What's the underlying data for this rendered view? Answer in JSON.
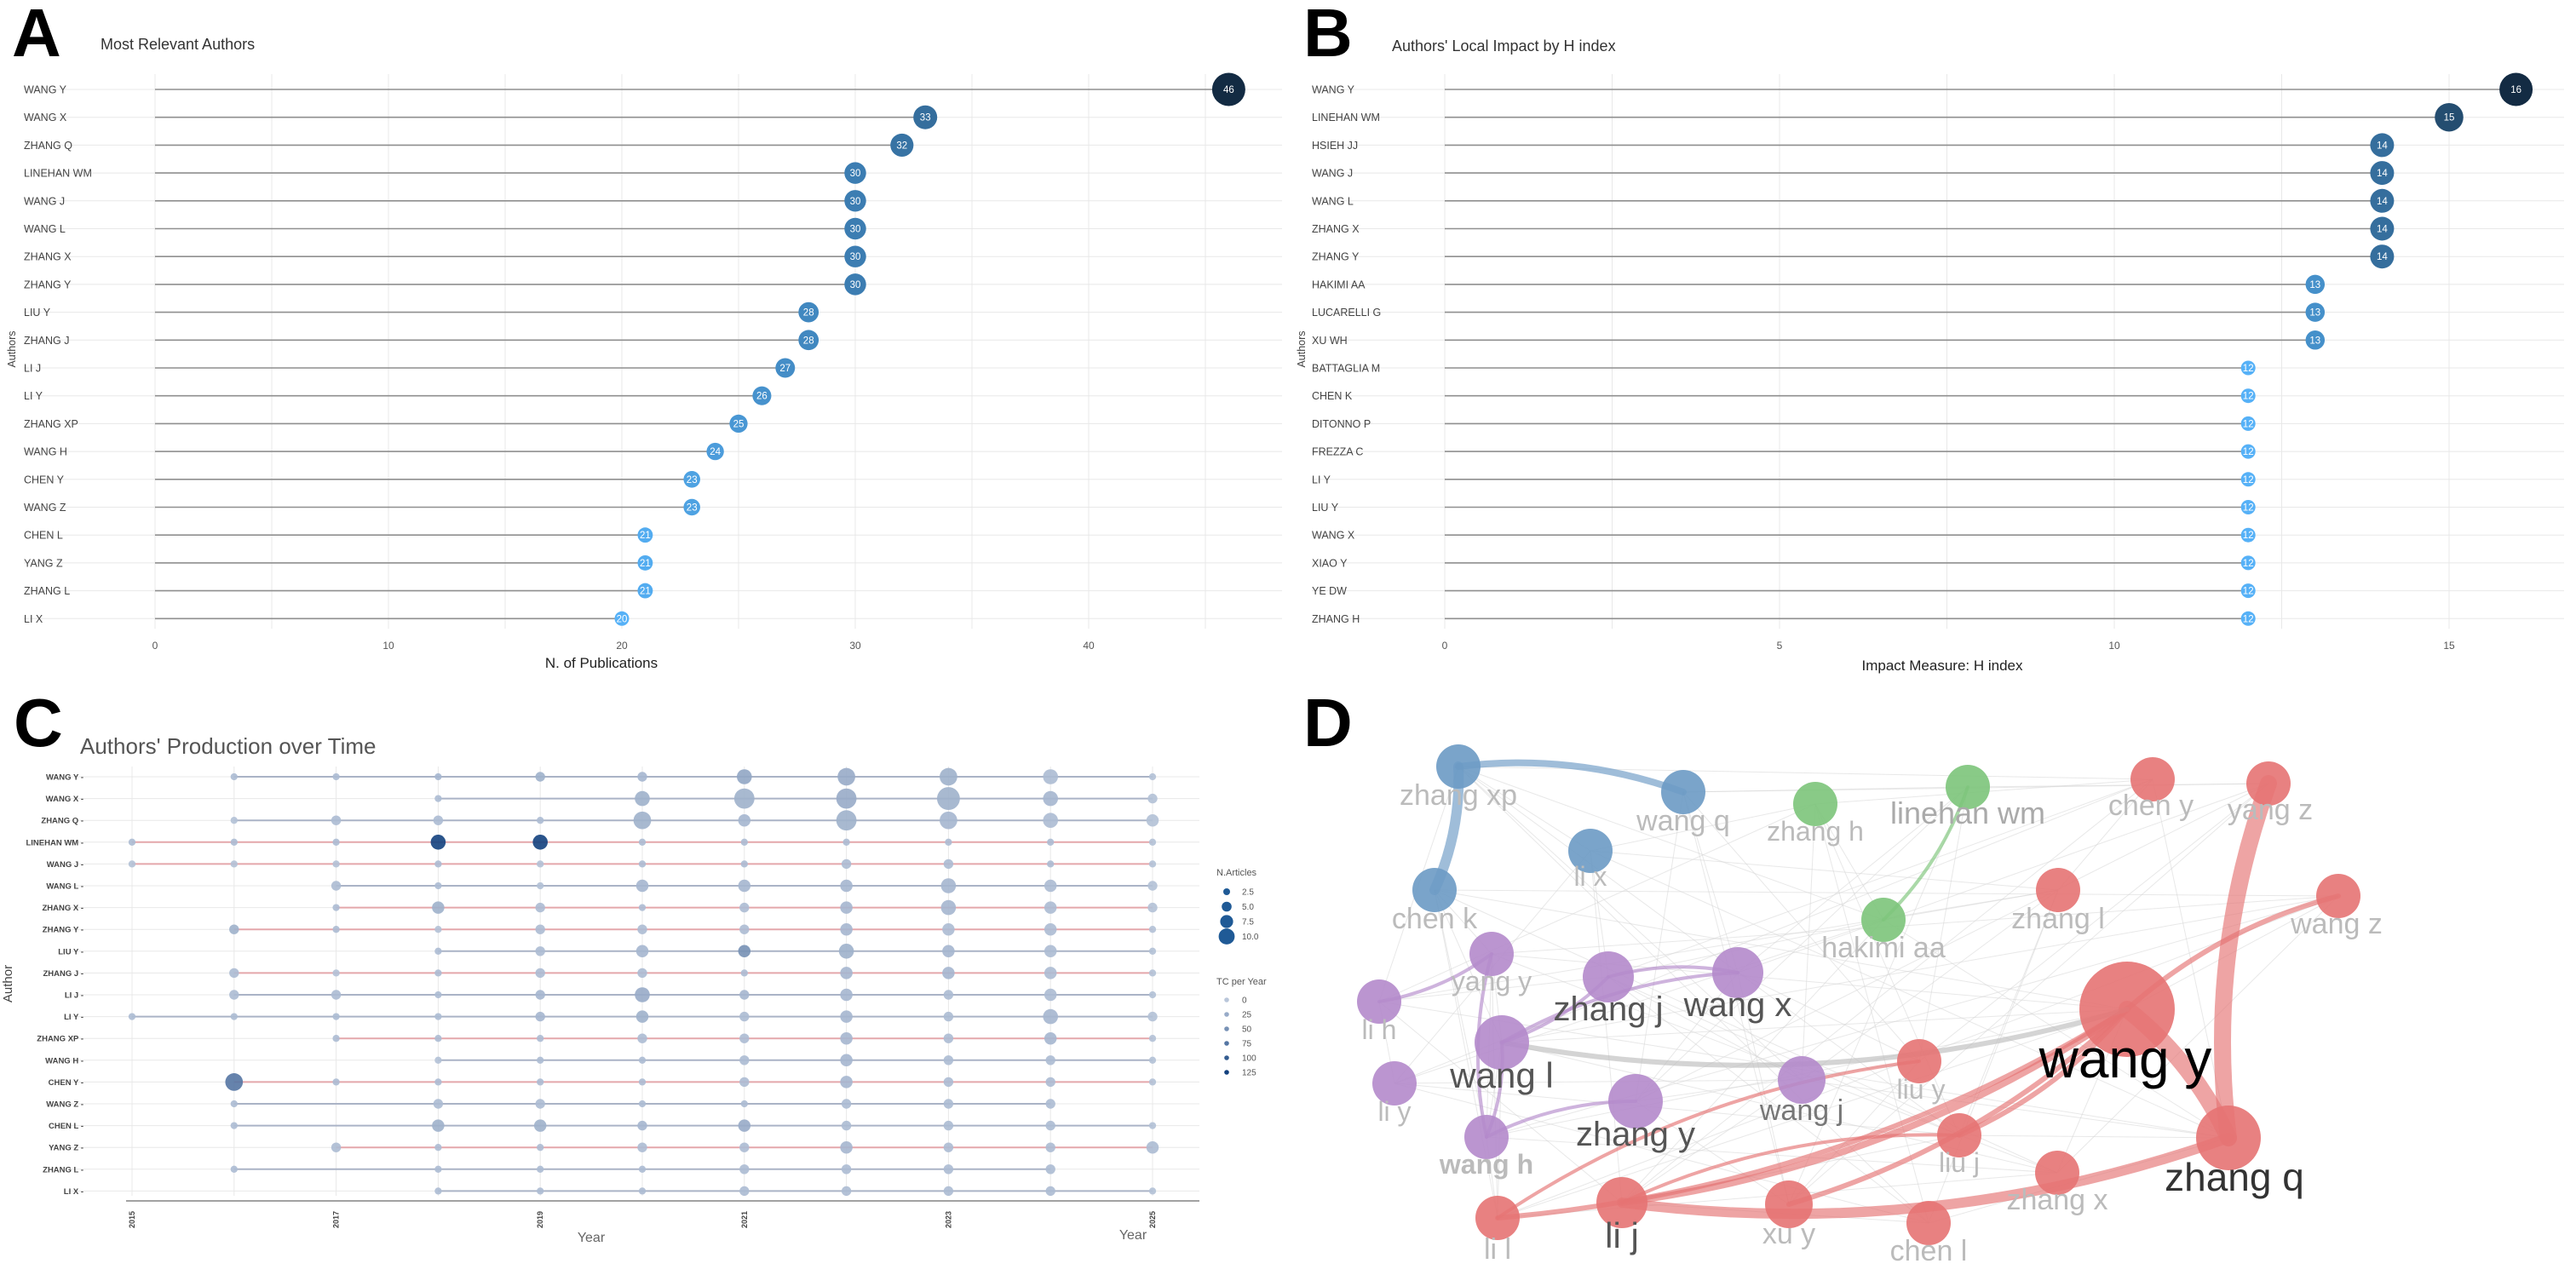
{
  "figure_labels": {
    "a": "A",
    "b": "B",
    "c": "C",
    "d": "D"
  },
  "chart_data": [
    {
      "panel": "A",
      "type": "lollipop",
      "title": "Most Relevant Authors",
      "xlabel": "N. of Publications",
      "ylabel": "Authors",
      "xlim": [
        0,
        46
      ],
      "xticks": [
        0,
        10,
        20,
        30,
        40
      ],
      "categories": [
        "WANG Y",
        "WANG X",
        "ZHANG Q",
        "LINEHAN WM",
        "WANG J",
        "WANG L",
        "ZHANG X",
        "ZHANG Y",
        "LIU Y",
        "ZHANG J",
        "LI J",
        "LI Y",
        "ZHANG XP",
        "WANG H",
        "CHEN Y",
        "WANG Z",
        "CHEN L",
        "YANG Z",
        "ZHANG L",
        "LI X"
      ],
      "values": [
        46,
        33,
        32,
        30,
        30,
        30,
        30,
        30,
        28,
        28,
        27,
        26,
        25,
        24,
        23,
        23,
        21,
        21,
        21,
        20
      ],
      "color_scale": {
        "low": "#56b1f7",
        "high": "#132b43"
      }
    },
    {
      "panel": "B",
      "type": "lollipop",
      "title": "Authors' Local Impact by H index",
      "xlabel": "Impact Measure: H index",
      "ylabel": "Authors",
      "xlim": [
        0,
        16
      ],
      "xticks": [
        0,
        5,
        10,
        15
      ],
      "categories": [
        "WANG Y",
        "LINEHAN WM",
        "HSIEH JJ",
        "WANG J",
        "WANG L",
        "ZHANG X",
        "ZHANG Y",
        "HAKIMI AA",
        "LUCARELLI G",
        "XU WH",
        "BATTAGLIA M",
        "CHEN K",
        "DITONNO P",
        "FREZZA C",
        "LI Y",
        "LIU Y",
        "WANG X",
        "XIAO Y",
        "YE DW",
        "ZHANG H"
      ],
      "values": [
        16,
        15,
        14,
        14,
        14,
        14,
        14,
        13,
        13,
        13,
        12,
        12,
        12,
        12,
        12,
        12,
        12,
        12,
        12,
        12
      ],
      "color_scale": {
        "low": "#56b1f7",
        "high": "#132b43"
      }
    },
    {
      "panel": "C",
      "type": "scatter",
      "title": "Authors' Production over Time",
      "xlabel": "Year",
      "ylabel": "Author",
      "xlabel_right": "Year",
      "years": [
        2015,
        2016,
        2017,
        2018,
        2019,
        2020,
        2021,
        2022,
        2023,
        2024,
        2025
      ],
      "xticks": [
        "2015",
        "2017",
        "2019",
        "2021",
        "2023",
        "2025"
      ],
      "authors": [
        "WANG Y",
        "WANG X",
        "ZHANG Q",
        "LINEHAN WM",
        "WANG J",
        "WANG L",
        "ZHANG X",
        "ZHANG Y",
        "LIU Y",
        "ZHANG J",
        "LI J",
        "LI Y",
        "ZHANG XP",
        "WANG H",
        "CHEN Y",
        "WANG Z",
        "CHEN L",
        "YANG Z",
        "ZHANG L",
        "LI X"
      ],
      "author_labels": [
        "WANG Y -",
        "WANG X -",
        "ZHANG Q -",
        "LINEHAN WM -",
        "WANG J -",
        "WANG L -",
        "ZHANG X -",
        "ZHANG Y -",
        "LIU Y -",
        "ZHANG J -",
        "LI J -",
        "LI Y -",
        "ZHANG XP -",
        "WANG H -",
        "CHEN Y -",
        "WANG Z -",
        "CHEN L -",
        "YANG Z -",
        "ZHANG L -",
        "LI X -"
      ],
      "line_colors": [
        "#aab3c6",
        "#aab3c6",
        "#aab3c6",
        "#e4a7ab",
        "#e4a7ab",
        "#aab3c6",
        "#e4a7ab",
        "#e4a7ab",
        "#aab3c6",
        "#e4a7ab",
        "#aab3c6",
        "#aab3c6",
        "#e4a7ab",
        "#aab3c6",
        "#e4a7ab",
        "#aab3c6",
        "#aab3c6",
        "#e4a7ab",
        "#aab3c6",
        "#aab3c6"
      ],
      "n_articles": [
        [
          0,
          1,
          1,
          1,
          2,
          2,
          4,
          5,
          5,
          4,
          1
        ],
        [
          0,
          0,
          0,
          1,
          0,
          4,
          6,
          6,
          7,
          4,
          2
        ],
        [
          0,
          1,
          2,
          2,
          1,
          5,
          3,
          6,
          5,
          4,
          3
        ],
        [
          1,
          1,
          1,
          4,
          4,
          1,
          1,
          1,
          1,
          1,
          1
        ],
        [
          1,
          1,
          1,
          1,
          1,
          1,
          1,
          2,
          2,
          1,
          1
        ],
        [
          0,
          0,
          2,
          1,
          1,
          3,
          3,
          3,
          4,
          3,
          2
        ],
        [
          0,
          0,
          1,
          3,
          2,
          1,
          2,
          3,
          4,
          3,
          2
        ],
        [
          0,
          2,
          1,
          1,
          2,
          2,
          2,
          3,
          3,
          3,
          1
        ],
        [
          0,
          0,
          0,
          1,
          2,
          3,
          3,
          4,
          3,
          3,
          1
        ],
        [
          0,
          2,
          1,
          1,
          2,
          2,
          1,
          3,
          3,
          3,
          1
        ],
        [
          0,
          2,
          2,
          1,
          2,
          4,
          2,
          3,
          2,
          3,
          1
        ],
        [
          1,
          1,
          1,
          1,
          2,
          3,
          2,
          3,
          2,
          4,
          2
        ],
        [
          0,
          0,
          1,
          1,
          1,
          2,
          2,
          3,
          2,
          3,
          1
        ],
        [
          0,
          0,
          0,
          1,
          1,
          1,
          2,
          3,
          2,
          2,
          1
        ],
        [
          0,
          5,
          1,
          1,
          1,
          1,
          2,
          3,
          2,
          2,
          1
        ],
        [
          0,
          1,
          0,
          2,
          2,
          1,
          1,
          2,
          2,
          2,
          0
        ],
        [
          0,
          1,
          0,
          3,
          3,
          2,
          3,
          2,
          2,
          2,
          1
        ],
        [
          0,
          0,
          2,
          1,
          1,
          2,
          2,
          3,
          2,
          2,
          3
        ],
        [
          0,
          1,
          0,
          1,
          1,
          1,
          2,
          2,
          2,
          2,
          0
        ],
        [
          0,
          0,
          0,
          1,
          1,
          1,
          2,
          2,
          2,
          2,
          1
        ]
      ],
      "tc_per_year": [
        [
          0,
          10,
          10,
          15,
          20,
          15,
          30,
          25,
          20,
          10,
          5
        ],
        [
          0,
          0,
          0,
          10,
          0,
          20,
          20,
          25,
          20,
          15,
          5
        ],
        [
          0,
          5,
          10,
          10,
          10,
          20,
          15,
          20,
          15,
          10,
          5
        ],
        [
          10,
          10,
          10,
          125,
          125,
          10,
          10,
          10,
          10,
          10,
          5
        ],
        [
          5,
          5,
          5,
          10,
          5,
          10,
          10,
          10,
          10,
          10,
          5
        ],
        [
          0,
          0,
          10,
          10,
          5,
          15,
          15,
          15,
          15,
          10,
          5
        ],
        [
          0,
          0,
          10,
          20,
          10,
          10,
          10,
          15,
          15,
          10,
          5
        ],
        [
          0,
          20,
          10,
          5,
          10,
          10,
          10,
          15,
          10,
          10,
          5
        ],
        [
          0,
          0,
          0,
          10,
          10,
          15,
          50,
          20,
          15,
          10,
          5
        ],
        [
          0,
          10,
          5,
          10,
          10,
          10,
          10,
          15,
          15,
          10,
          5
        ],
        [
          0,
          10,
          10,
          10,
          15,
          25,
          15,
          15,
          10,
          10,
          5
        ],
        [
          10,
          10,
          10,
          10,
          15,
          20,
          10,
          15,
          10,
          15,
          5
        ],
        [
          0,
          0,
          10,
          10,
          10,
          10,
          10,
          15,
          10,
          15,
          5
        ],
        [
          0,
          0,
          0,
          5,
          10,
          10,
          10,
          15,
          10,
          10,
          5
        ],
        [
          0,
          75,
          10,
          10,
          10,
          10,
          10,
          15,
          10,
          10,
          5
        ],
        [
          0,
          10,
          0,
          10,
          10,
          10,
          10,
          10,
          10,
          10,
          0
        ],
        [
          0,
          10,
          0,
          20,
          20,
          15,
          25,
          10,
          10,
          10,
          5
        ],
        [
          0,
          0,
          10,
          10,
          10,
          10,
          10,
          15,
          10,
          10,
          10
        ],
        [
          0,
          10,
          0,
          10,
          10,
          10,
          10,
          10,
          10,
          10,
          0
        ],
        [
          0,
          0,
          0,
          10,
          10,
          10,
          10,
          10,
          10,
          10,
          5
        ]
      ],
      "legend": {
        "size_title": "N.Articles",
        "size_values": [
          "2.5",
          "5.0",
          "7.5",
          "10.0"
        ],
        "color_title": "TC per Year",
        "color_values": [
          "0",
          "25",
          "50",
          "75",
          "100",
          "125"
        ]
      }
    },
    {
      "panel": "D",
      "type": "network",
      "title": "",
      "nodes": [
        {
          "id": "wang y",
          "cluster": "red",
          "size": 10
        },
        {
          "id": "zhang q",
          "cluster": "red",
          "size": 6.5
        },
        {
          "id": "yang z",
          "cluster": "red",
          "size": 4
        },
        {
          "id": "chen y",
          "cluster": "red",
          "size": 4
        },
        {
          "id": "wang z",
          "cluster": "red",
          "size": 4
        },
        {
          "id": "zhang l",
          "cluster": "red",
          "size": 4
        },
        {
          "id": "liu y",
          "cluster": "red",
          "size": 4
        },
        {
          "id": "liu j",
          "cluster": "red",
          "size": 4
        },
        {
          "id": "zhang x",
          "cluster": "red",
          "size": 4
        },
        {
          "id": "li j",
          "cluster": "red",
          "size": 4.5
        },
        {
          "id": "xu y",
          "cluster": "red",
          "size": 4
        },
        {
          "id": "chen l",
          "cluster": "red",
          "size": 4
        },
        {
          "id": "li l",
          "cluster": "red",
          "size": 4
        },
        {
          "id": "zhang xp",
          "cluster": "blue",
          "size": 4
        },
        {
          "id": "wang q",
          "cluster": "blue",
          "size": 4
        },
        {
          "id": "li x",
          "cluster": "blue",
          "size": 4
        },
        {
          "id": "chen k",
          "cluster": "blue",
          "size": 4
        },
        {
          "id": "zhang h",
          "cluster": "green",
          "size": 4
        },
        {
          "id": "linehan wm",
          "cluster": "green",
          "size": 4
        },
        {
          "id": "hakimi aa",
          "cluster": "green",
          "size": 4
        },
        {
          "id": "yang y",
          "cluster": "purple",
          "size": 4
        },
        {
          "id": "zhang j",
          "cluster": "purple",
          "size": 4.5
        },
        {
          "id": "wang x",
          "cluster": "purple",
          "size": 4.5
        },
        {
          "id": "li h",
          "cluster": "purple",
          "size": 4
        },
        {
          "id": "wang l",
          "cluster": "purple",
          "size": 4.5
        },
        {
          "id": "li y",
          "cluster": "purple",
          "size": 4
        },
        {
          "id": "zhang y",
          "cluster": "purple",
          "size": 4.5
        },
        {
          "id": "wang j",
          "cluster": "purple",
          "size": 4
        },
        {
          "id": "wang h",
          "cluster": "purple",
          "size": 4
        }
      ],
      "edges": [
        {
          "source": "wang y",
          "target": "zhang q",
          "weight": 5
        },
        {
          "source": "zhang q",
          "target": "yang z",
          "weight": 5
        },
        {
          "source": "zhang q",
          "target": "li j",
          "weight": 3
        },
        {
          "source": "zhang xp",
          "target": "chen k",
          "weight": 3
        },
        {
          "source": "zhang xp",
          "target": "wang q",
          "weight": 2
        },
        {
          "source": "wang y",
          "target": "li j",
          "weight": 2
        },
        {
          "source": "wang y",
          "target": "wang z",
          "weight": 1.5
        },
        {
          "source": "wang y",
          "target": "xu y",
          "weight": 1.5
        },
        {
          "source": "wang y",
          "target": "liu j",
          "weight": 1.5
        },
        {
          "source": "wang y",
          "target": "li l",
          "weight": 1.5
        },
        {
          "source": "wang y",
          "target": "wang l",
          "weight": 1.5
        },
        {
          "source": "linehan wm",
          "target": "hakimi aa",
          "weight": 1
        },
        {
          "source": "wang l",
          "target": "wang x",
          "weight": 1
        },
        {
          "source": "yang y",
          "target": "li h",
          "weight": 1
        },
        {
          "source": "zhang j",
          "target": "wang l",
          "weight": 1
        },
        {
          "source": "wang l",
          "target": "wang h",
          "weight": 1
        },
        {
          "source": "wang h",
          "target": "zhang y",
          "weight": 1
        },
        {
          "source": "wang h",
          "target": "yang y",
          "weight": 1
        },
        {
          "source": "zhang j",
          "target": "wang x",
          "weight": 1
        },
        {
          "source": "li j",
          "target": "liu j",
          "weight": 1
        },
        {
          "source": "li l",
          "target": "liu y",
          "weight": 1
        }
      ],
      "cluster_colors": {
        "red": "#e57373",
        "blue": "#6b9ac4",
        "green": "#7cc47a",
        "purple": "#b48acb"
      }
    }
  ]
}
